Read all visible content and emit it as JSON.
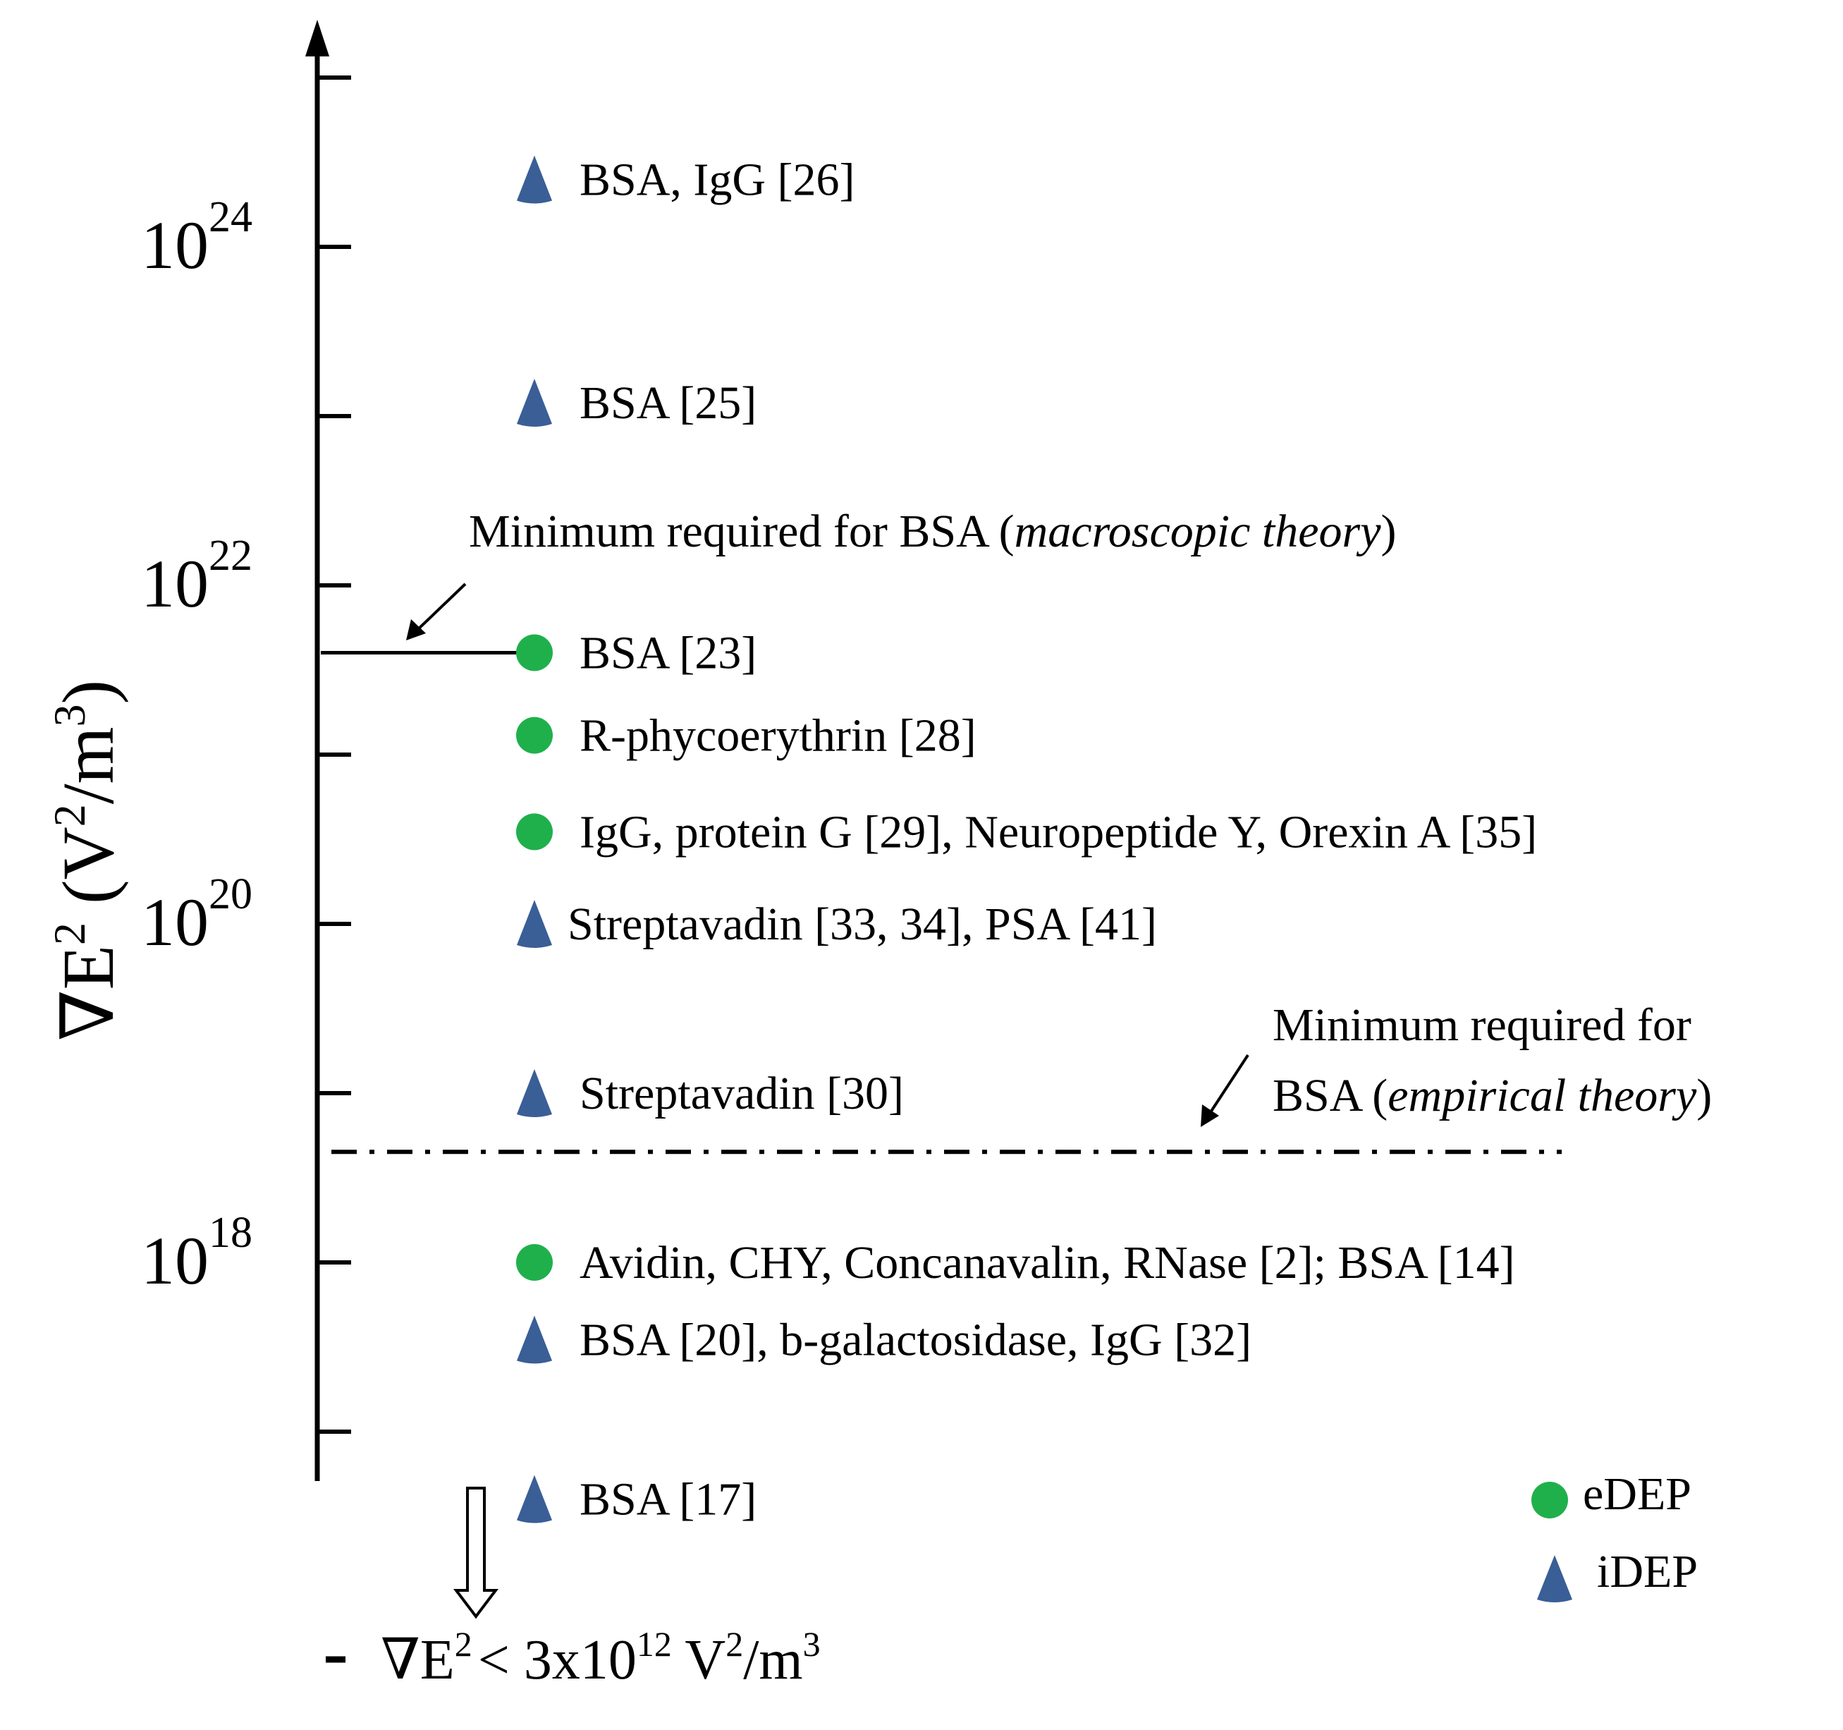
{
  "chart_data": {
    "type": "scatter",
    "yscale": "log",
    "ylabel": "∇E² (V²/m³)",
    "ylabel_base": "∇E",
    "ylabel_exp": "2",
    "ylabel_unit_open": " (V",
    "ylabel_unit_exp": "2",
    "ylabel_unit_close": "/m",
    "ylabel_unit_exp2": "3",
    "ylabel_unit_end": ")",
    "ylim": [
      1e+16,
      1e+26
    ],
    "y_ticks": [
      {
        "value": 1e+24,
        "base": "10",
        "exp": "24"
      },
      {
        "value": 1e+22,
        "base": "10",
        "exp": "22"
      },
      {
        "value": 1e+20,
        "base": "10",
        "exp": "20"
      },
      {
        "value": 1e+18,
        "base": "10",
        "exp": "18"
      }
    ],
    "minor_ticks": [
      1e+25,
      1e+23,
      1e+21,
      1e+19,
      1e+17
    ],
    "legend": {
      "position": "bottom-right",
      "entries": [
        {
          "name": "eDEP",
          "marker": "circle",
          "color": "#1fb04c"
        },
        {
          "name": "iDEP",
          "marker": "triangle",
          "color": "#3a5e96"
        }
      ]
    },
    "points": [
      {
        "label": "BSA, IgG [26]",
        "y": 2.5e+24,
        "method": "iDEP"
      },
      {
        "label": "BSA [25]",
        "y": 1.2e+23,
        "method": "iDEP"
      },
      {
        "label": "BSA [23]",
        "y": 4e+21,
        "method": "eDEP"
      },
      {
        "label": "R-phycoerythrin  [28]",
        "y": 1.3e+21,
        "method": "eDEP"
      },
      {
        "label": "IgG, protein G [29], Neuropeptide  Y, Orexin A [35]",
        "y": 3.5e+20,
        "method": "eDEP"
      },
      {
        "label": "Streptavadin  [33, 34], PSA [41]",
        "y": 1e+20,
        "method": "iDEP"
      },
      {
        "label": "Streptavadin  [30]",
        "y": 1e+19,
        "method": "iDEP"
      },
      {
        "label": "Avidin,  CHY, Concanavalin,  RNase [2];  BSA [14]",
        "y": 1e+18,
        "method": "eDEP"
      },
      {
        "label": "BSA [20], b-galactosidase,  IgG [32]",
        "y": 3.5e+17,
        "method": "iDEP"
      },
      {
        "label": "BSA [17]",
        "y": 4e+16,
        "method": "iDEP"
      }
    ],
    "annotations": [
      {
        "kind": "solid-line",
        "y": 4e+21,
        "text_prefix": "Minimum  required  for BSA (",
        "text_italic": "macroscopic  theory",
        "text_suffix": ")"
      },
      {
        "kind": "dash-dot-line",
        "y": 4.5e+18,
        "text_line1": "Minimum  required  for",
        "text_prefix": "BSA (",
        "text_italic": "empirical  theory",
        "text_suffix": ")"
      }
    ],
    "footnote": {
      "base": "∇E",
      "exp": "2",
      "mid": "< 3x10",
      "exp2": "12",
      "unit": " V",
      "exp3": "2",
      "unit2": "/m",
      "exp4": "3"
    },
    "colors": {
      "edep": "#1fb04c",
      "idep": "#3a5e96",
      "axis": "#000000"
    }
  }
}
